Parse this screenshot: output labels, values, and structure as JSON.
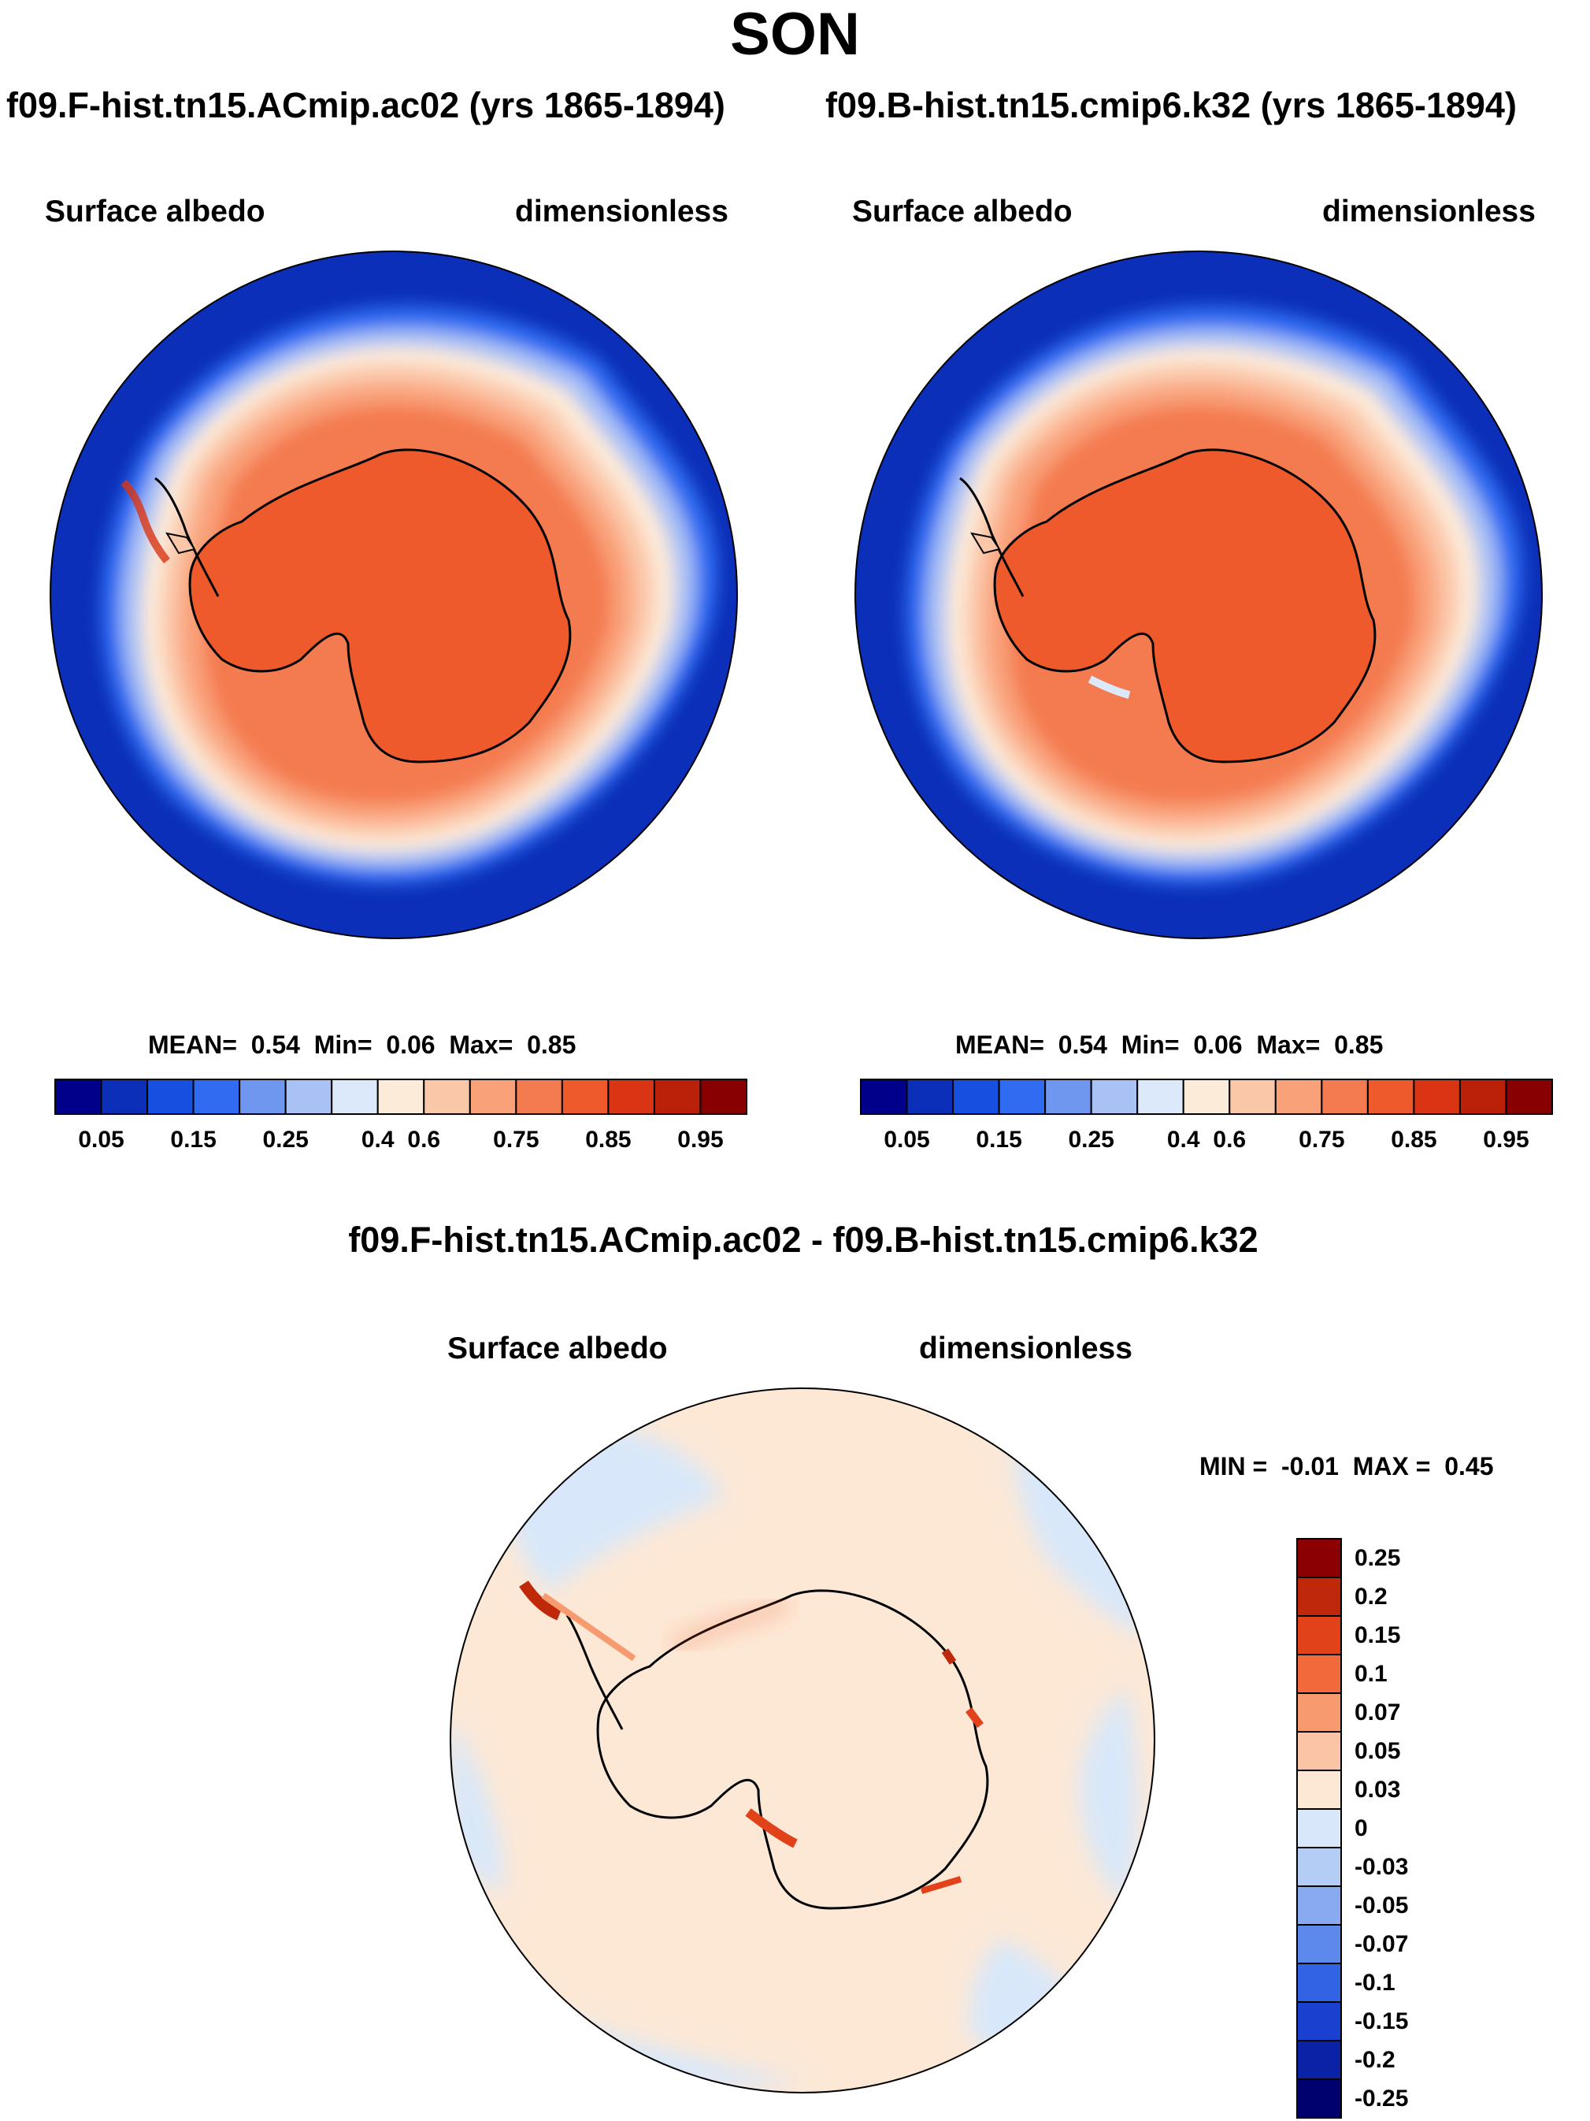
{
  "title": "SON",
  "panels": [
    {
      "case": "f09.F-hist.tn15.ACmip.ac02 (yrs 1865-1894)",
      "variable": "Surface albedo",
      "units": "dimensionless",
      "stats": {
        "mean_label": "MEAN=",
        "mean": "0.54",
        "min_label": "Min=",
        "min": "0.06",
        "max_label": "Max=",
        "max": "0.85"
      }
    },
    {
      "case": "f09.B-hist.tn15.cmip6.k32 (yrs 1865-1894)",
      "variable": "Surface albedo",
      "units": "dimensionless",
      "stats": {
        "mean_label": "MEAN=",
        "mean": "0.54",
        "min_label": "Min=",
        "min": "0.06",
        "max_label": "Max=",
        "max": "0.85"
      }
    }
  ],
  "diff_panel": {
    "title": "f09.F-hist.tn15.ACmip.ac02 - f09.B-hist.tn15.cmip6.k32",
    "variable": "Surface albedo",
    "units": "dimensionless",
    "minmax": {
      "min_label": "MIN =",
      "min": "-0.01",
      "max_label": "MAX =",
      "max": "0.45"
    }
  },
  "chart_data": [
    {
      "type": "heatmap",
      "projection": "south polar stereographic",
      "colorbar_orientation": "horizontal",
      "colorbar_colors": [
        "#00008b",
        "#0b2fb8",
        "#1550e0",
        "#2f6cf2",
        "#6f97f0",
        "#a9c1f5",
        "#dce9fa",
        "#fdebd9",
        "#fbc7a9",
        "#f9a27a",
        "#f47a50",
        "#ee5a2c",
        "#d93514",
        "#bb2108",
        "#880000"
      ],
      "colorbar_ticks": [
        "0.05",
        "0.15",
        "0.25",
        "0.4",
        "0.6",
        "0.75",
        "0.85",
        "0.95"
      ]
    },
    {
      "type": "heatmap",
      "projection": "south polar stereographic",
      "colorbar_orientation": "vertical",
      "colorbar_colors": [
        "#8b0000",
        "#c0280a",
        "#e2421a",
        "#f2693b",
        "#f79a70",
        "#fcc4a6",
        "#fde8d6",
        "#d8e8fa",
        "#b3cdf5",
        "#88abf0",
        "#5d88ec",
        "#3263e4",
        "#1a40d0",
        "#0a22a6",
        "#00006e"
      ],
      "colorbar_ticks": [
        "0.25",
        "0.2",
        "0.15",
        "0.1",
        "0.07",
        "0.05",
        "0.03",
        "0",
        "-0.03",
        "-0.05",
        "-0.07",
        "-0.1",
        "-0.15",
        "-0.2",
        "-0.25"
      ]
    }
  ]
}
